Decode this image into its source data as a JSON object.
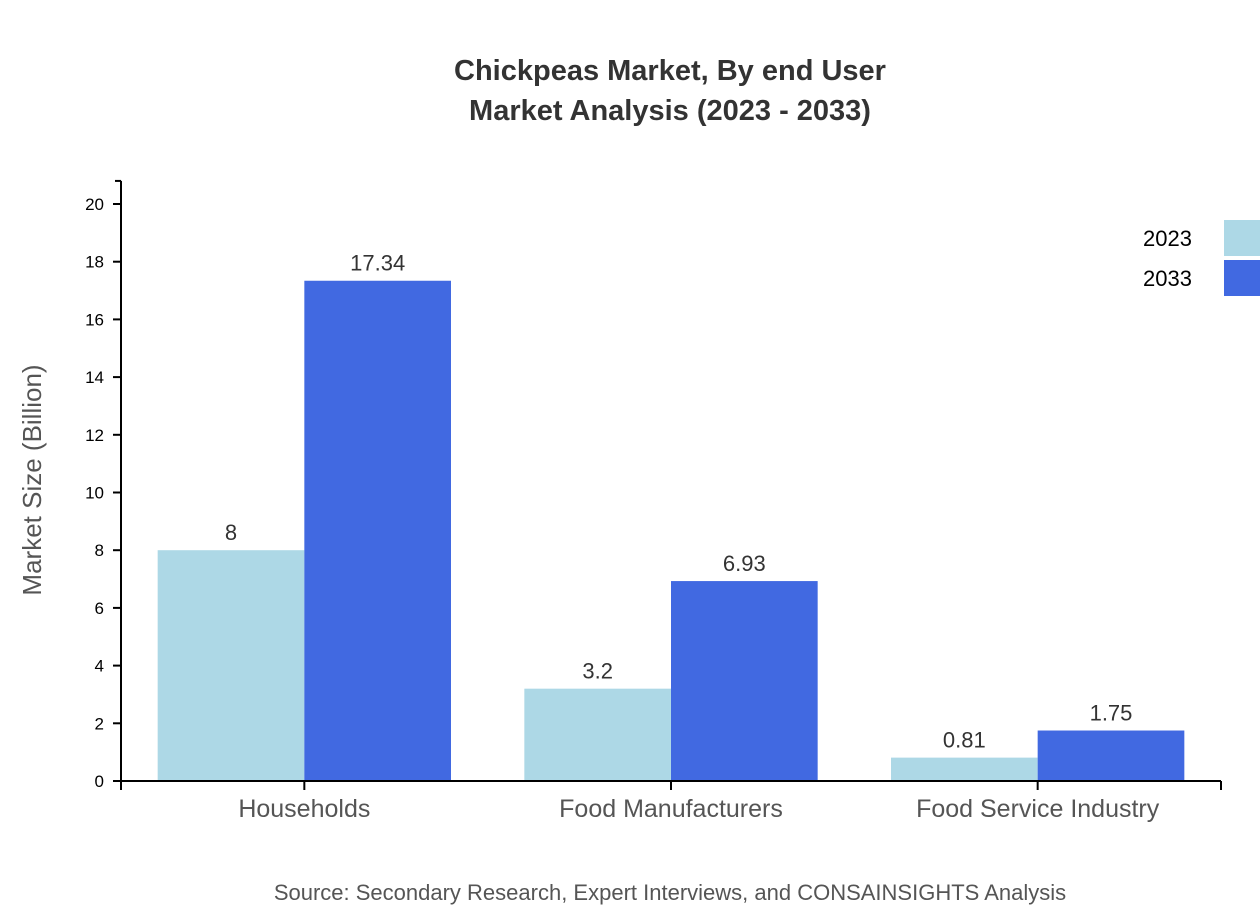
{
  "chart_data": {
    "type": "bar",
    "title": "Chickpeas Market, By end User",
    "subtitle": "Market Analysis (2023 - 2033)",
    "xlabel": "",
    "ylabel": "Market Size (Billion)",
    "ylim": [
      0,
      20.8
    ],
    "yticks": [
      0,
      2,
      4,
      6,
      8,
      10,
      12,
      14,
      16,
      18,
      20
    ],
    "categories": [
      "Households",
      "Food Manufacturers",
      "Food Service Industry"
    ],
    "series": [
      {
        "name": "2023",
        "values": [
          8,
          3.2,
          0.81
        ],
        "color": "#ADD8E6"
      },
      {
        "name": "2033",
        "values": [
          17.34,
          6.93,
          1.75
        ],
        "color": "#4169E1"
      }
    ],
    "grid": false,
    "legend": "top-right",
    "source": "Source: Secondary Research, Expert Interviews, and CONSAINSIGHTS Analysis"
  }
}
